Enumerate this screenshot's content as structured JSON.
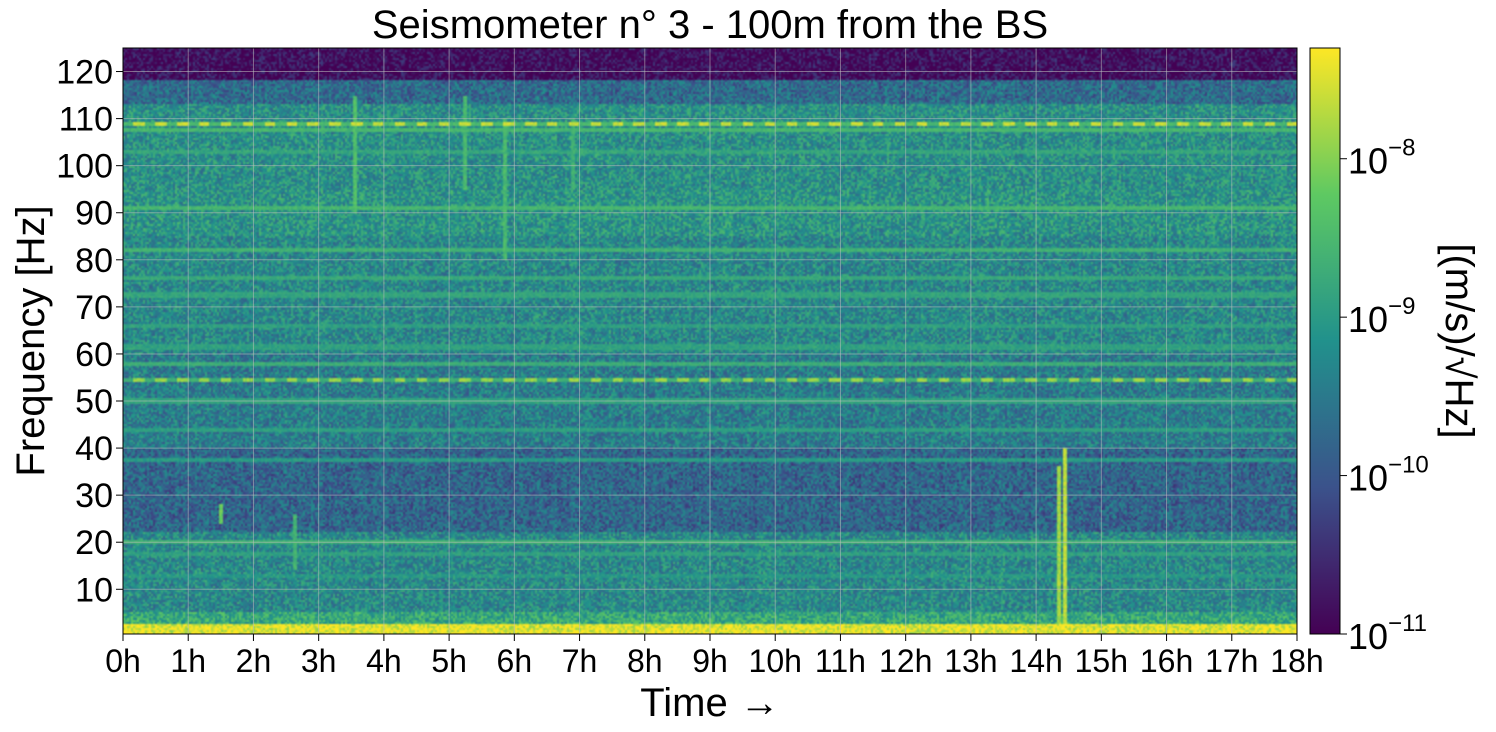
{
  "chart_data": {
    "type": "heatmap",
    "title": "Seismometer n° 3 - 100m from the BS",
    "xlabel": "Time",
    "xlabel_arrow": "→",
    "ylabel": "Frequency [Hz]",
    "colorbar_label": "[(m/s)/√Hz]",
    "colormap": "viridis",
    "colormap_stops": [
      "#440154",
      "#3b528b",
      "#21918c",
      "#5ec962",
      "#fde725"
    ],
    "x_ticks": [
      "0h",
      "1h",
      "2h",
      "3h",
      "4h",
      "5h",
      "6h",
      "7h",
      "8h",
      "9h",
      "10h",
      "11h",
      "12h",
      "13h",
      "14h",
      "15h",
      "16h",
      "17h",
      "18h"
    ],
    "xlim": [
      0,
      18
    ],
    "y_ticks": [
      10,
      20,
      30,
      40,
      50,
      60,
      70,
      80,
      90,
      100,
      110,
      120
    ],
    "ylim": [
      0.5,
      125
    ],
    "colorbar_scale": "log",
    "colorbar_range": [
      1e-11,
      5e-08
    ],
    "colorbar_ticks": [
      {
        "base": "10",
        "exp": "−11",
        "value": 1e-11
      },
      {
        "base": "10",
        "exp": "−10",
        "value": 1e-10
      },
      {
        "base": "10",
        "exp": "−9",
        "value": 1e-09
      },
      {
        "base": "10",
        "exp": "−8",
        "value": 1e-08
      }
    ],
    "grid": true,
    "frequency_bands": [
      {
        "f0": 118,
        "f1": 125,
        "level": 0.03
      },
      {
        "f0": 113,
        "f1": 118,
        "level": 0.35
      },
      {
        "f0": 95,
        "f1": 113,
        "level": 0.5
      },
      {
        "f0": 85,
        "f1": 95,
        "level": 0.52
      },
      {
        "f0": 60,
        "f1": 85,
        "level": 0.47
      },
      {
        "f0": 40,
        "f1": 60,
        "level": 0.42
      },
      {
        "f0": 22,
        "f1": 40,
        "level": 0.33
      },
      {
        "f0": 5,
        "f1": 22,
        "level": 0.47
      },
      {
        "f0": 2.5,
        "f1": 5,
        "level": 0.6
      },
      {
        "f0": 0.5,
        "f1": 2.5,
        "level": 0.97
      }
    ],
    "spectral_lines": [
      {
        "f": 109,
        "level": 0.95
      },
      {
        "f": 107.5,
        "level": 0.7
      },
      {
        "f": 103,
        "level": 0.62
      },
      {
        "f": 91,
        "level": 0.7
      },
      {
        "f": 82,
        "level": 0.68
      },
      {
        "f": 76,
        "level": 0.64
      },
      {
        "f": 72.5,
        "level": 0.62
      },
      {
        "f": 66,
        "level": 0.6
      },
      {
        "f": 61.5,
        "level": 0.6
      },
      {
        "f": 58,
        "level": 0.66
      },
      {
        "f": 54.5,
        "level": 0.88
      },
      {
        "f": 50,
        "level": 0.62
      },
      {
        "f": 44,
        "level": 0.6
      },
      {
        "f": 37.5,
        "level": 0.58
      },
      {
        "f": 20,
        "level": 0.68
      },
      {
        "f": 17.5,
        "level": 0.6
      },
      {
        "f": 13,
        "level": 0.56
      }
    ],
    "transients": [
      {
        "t": 1.5,
        "f0": 24,
        "f1": 28,
        "level": 0.8
      },
      {
        "t": 2.65,
        "f0": 14,
        "f1": 26,
        "level": 0.7
      },
      {
        "t": 3.55,
        "f0": 90,
        "f1": 115,
        "level": 0.75
      },
      {
        "t": 5.25,
        "f0": 95,
        "f1": 115,
        "level": 0.72
      },
      {
        "t": 5.85,
        "f0": 80,
        "f1": 110,
        "level": 0.72
      },
      {
        "t": 6.9,
        "f0": 95,
        "f1": 110,
        "level": 0.68
      },
      {
        "t": 14.35,
        "f0": 2,
        "f1": 36,
        "level": 0.9
      },
      {
        "t": 14.45,
        "f0": 2,
        "f1": 40,
        "level": 0.95
      }
    ]
  }
}
